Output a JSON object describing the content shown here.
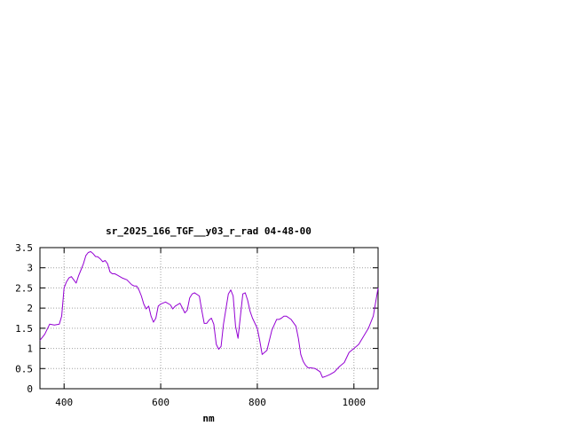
{
  "chart_data": {
    "type": "line",
    "title": "sr_2025_166_TGF__y03_r_rad 04-48-00",
    "xlabel": "nm",
    "ylabel": "",
    "xlim": [
      350,
      1050
    ],
    "ylim": [
      0,
      3.5
    ],
    "xticks": [
      400,
      600,
      800,
      1000
    ],
    "yticks": [
      0,
      0.5,
      1,
      1.5,
      2,
      2.5,
      3,
      3.5
    ],
    "xtick_labels": [
      "400",
      "600",
      "800",
      "1000"
    ],
    "ytick_labels": [
      "0",
      "0.5",
      "1",
      "1.5",
      "2",
      "2.5",
      "3",
      "3.5"
    ],
    "grid": true,
    "legend": "none",
    "color": "#9400d3",
    "series": [
      {
        "x": [
          350,
          360,
          370,
          380,
          390,
          395,
          400,
          405,
          410,
          415,
          420,
          425,
          430,
          435,
          440,
          445,
          450,
          455,
          460,
          465,
          470,
          475,
          480,
          485,
          490,
          495,
          500,
          505,
          510,
          520,
          530,
          540,
          545,
          550,
          555,
          560,
          565,
          570,
          575,
          580,
          585,
          590,
          595,
          600,
          610,
          620,
          625,
          630,
          640,
          645,
          650,
          655,
          660,
          665,
          670,
          680,
          685,
          690,
          695,
          700,
          705,
          710,
          715,
          720,
          725,
          730,
          740,
          745,
          750,
          755,
          760,
          765,
          770,
          775,
          780,
          785,
          790,
          800,
          805,
          810,
          820,
          830,
          840,
          845,
          850,
          855,
          860,
          870,
          880,
          885,
          890,
          895,
          900,
          905,
          910,
          920,
          930,
          935,
          940,
          950,
          960,
          970,
          980,
          990,
          1000,
          1010,
          1020,
          1030,
          1040,
          1050
        ],
        "y": [
          1.2,
          1.35,
          1.6,
          1.58,
          1.6,
          1.8,
          2.5,
          2.65,
          2.75,
          2.78,
          2.7,
          2.62,
          2.8,
          2.95,
          3.1,
          3.3,
          3.38,
          3.4,
          3.35,
          3.28,
          3.27,
          3.22,
          3.15,
          3.18,
          3.1,
          2.9,
          2.85,
          2.85,
          2.82,
          2.75,
          2.7,
          2.58,
          2.55,
          2.55,
          2.45,
          2.3,
          2.1,
          1.98,
          2.05,
          1.8,
          1.65,
          1.75,
          2.05,
          2.1,
          2.15,
          2.08,
          1.98,
          2.05,
          2.12,
          2.0,
          1.88,
          1.95,
          2.25,
          2.35,
          2.38,
          2.3,
          1.95,
          1.62,
          1.62,
          1.7,
          1.75,
          1.6,
          1.1,
          0.98,
          1.05,
          1.6,
          2.35,
          2.45,
          2.3,
          1.55,
          1.25,
          1.8,
          2.35,
          2.38,
          2.2,
          1.92,
          1.75,
          1.5,
          1.2,
          0.85,
          0.95,
          1.45,
          1.72,
          1.72,
          1.75,
          1.8,
          1.8,
          1.72,
          1.55,
          1.25,
          0.85,
          0.68,
          0.58,
          0.52,
          0.52,
          0.5,
          0.42,
          0.28,
          0.3,
          0.35,
          0.42,
          0.55,
          0.65,
          0.9,
          1.0,
          1.1,
          1.3,
          1.5,
          1.8,
          2.5
        ]
      }
    ]
  }
}
